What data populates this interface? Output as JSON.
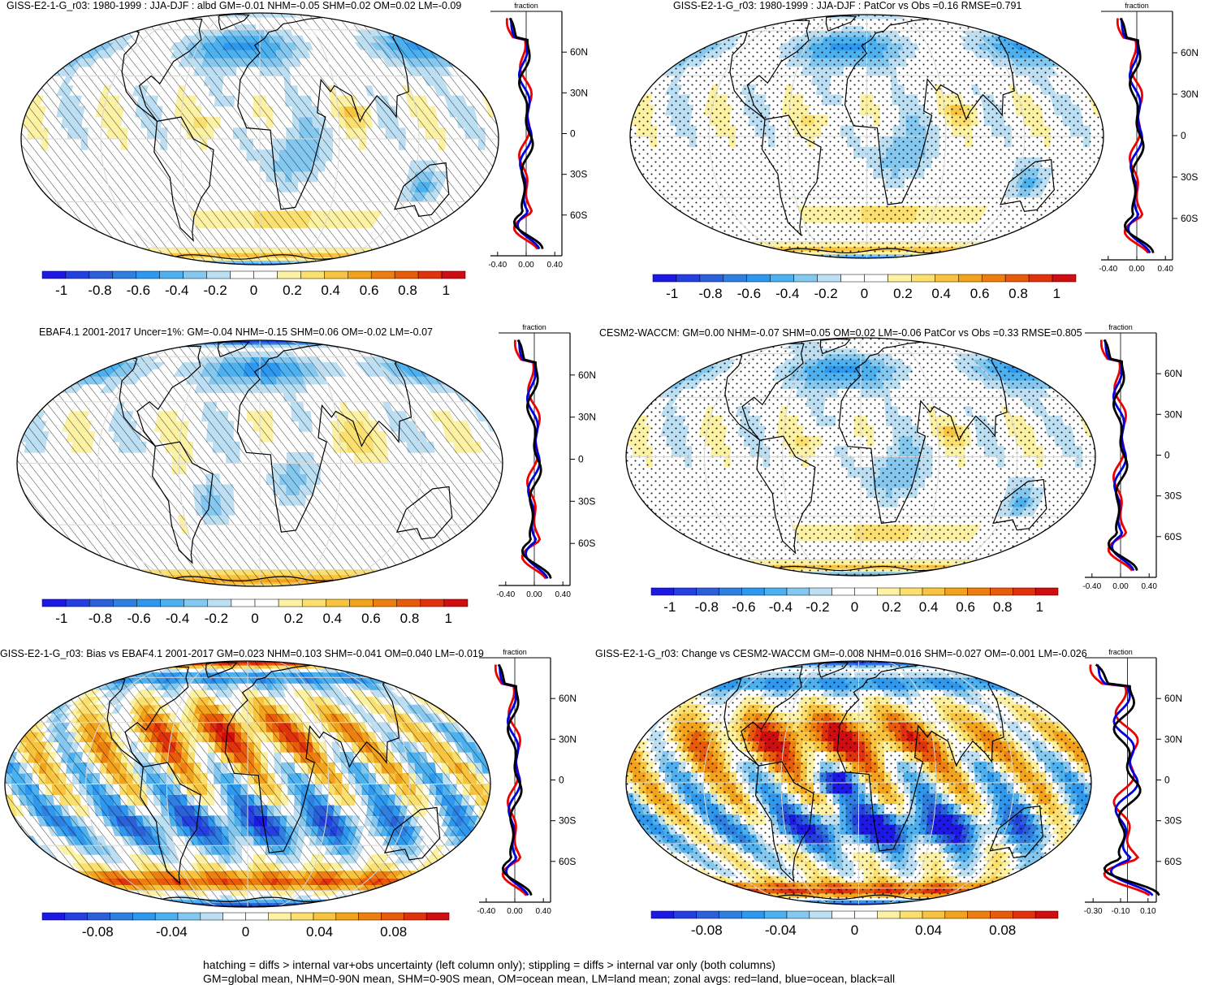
{
  "panels": [
    {
      "title": "GISS-E2-1-G_r03: 1980-1999 : JJA-DJF : albd GM=-0.01 NHM=-0.05 SHM=0.02 OM=0.02 LM=-0.09",
      "overlay": "hatch",
      "scheme": "A"
    },
    {
      "title": "GISS-E2-1-G_r03: 1980-1999 : JJA-DJF : PatCor vs Obs =0.16 RMSE=0.791",
      "overlay": "stipple",
      "scheme": "A"
    },
    {
      "title": "EBAF4.1 2001-2017 Uncer=1%: GM=-0.04 NHM=-0.15 SHM=0.06 OM=-0.02 LM=-0.07",
      "overlay": "hatch",
      "scheme": "B"
    },
    {
      "title": "CESM2-WACCM: GM=0.00 NHM=-0.07 SHM=0.05 OM=0.02 LM=-0.06 PatCor vs Obs =0.33 RMSE=0.805",
      "overlay": "stipple",
      "scheme": "C"
    },
    {
      "title": "GISS-E2-1-G_r03: Bias vs EBAF4.1 2001-2017 GM=0.023 NHM=0.103 SHM=-0.041 OM=0.040 LM=-0.019",
      "overlay": "hatch",
      "scheme": "D"
    },
    {
      "title": "GISS-E2-1-G_r03: Change vs CESM2-WACCM GM=-0.008 NHM=0.016 SHM=-0.027 OM=-0.001 LM=-0.026",
      "overlay": "stipple",
      "scheme": "E"
    }
  ],
  "chart_data": [
    {
      "type": "heatmap",
      "title": "GISS-E2-1-G_r03: 1980-1999 : JJA-DJF : albd GM=-0.01 NHM=-0.05 SHM=0.02 OM=0.02 LM=-0.09",
      "colorbar": {
        "ticks": [
          "-1",
          "-0.8",
          "-0.6",
          "-0.4",
          "-0.2",
          "0",
          "0.2",
          "0.4",
          "0.6",
          "0.8",
          "1"
        ],
        "range": [
          -1.1,
          1.1
        ]
      },
      "zonal_profile": {
        "xlabel": "fraction",
        "xticks": [
          "-0.40",
          "0.00",
          "0.40"
        ],
        "ylabels": [
          "60N",
          "30N",
          "0",
          "30S",
          "60S"
        ],
        "series": [
          {
            "name": "land",
            "color": "#ee0000"
          },
          {
            "name": "ocean",
            "color": "#0000dd"
          },
          {
            "name": "all",
            "color": "#000000"
          }
        ]
      }
    },
    {
      "type": "heatmap",
      "title": "GISS-E2-1-G_r03: 1980-1999 : JJA-DJF : PatCor vs Obs =0.16 RMSE=0.791",
      "colorbar": {
        "ticks": [
          "-1",
          "-0.8",
          "-0.6",
          "-0.4",
          "-0.2",
          "0",
          "0.2",
          "0.4",
          "0.6",
          "0.8",
          "1"
        ],
        "range": [
          -1.1,
          1.1
        ]
      },
      "zonal_profile": {
        "xlabel": "fraction",
        "xticks": [
          "-0.40",
          "0.00",
          "0.40"
        ],
        "ylabels": [
          "60N",
          "30N",
          "0",
          "30S",
          "60S"
        ],
        "series": [
          {
            "name": "land",
            "color": "#ee0000"
          },
          {
            "name": "ocean",
            "color": "#0000dd"
          },
          {
            "name": "all",
            "color": "#000000"
          }
        ]
      }
    },
    {
      "type": "heatmap",
      "title": "EBAF4.1 2001-2017 Uncer=1%: GM=-0.04 NHM=-0.15 SHM=0.06 OM=-0.02 LM=-0.07",
      "colorbar": {
        "ticks": [
          "-1",
          "-0.8",
          "-0.6",
          "-0.4",
          "-0.2",
          "0",
          "0.2",
          "0.4",
          "0.6",
          "0.8",
          "1"
        ],
        "range": [
          -1.1,
          1.1
        ]
      },
      "zonal_profile": {
        "xlabel": "fraction",
        "xticks": [
          "-0.40",
          "0.00",
          "0.40"
        ],
        "ylabels": [
          "60N",
          "30N",
          "0",
          "30S",
          "60S"
        ],
        "series": [
          {
            "name": "land",
            "color": "#ee0000"
          },
          {
            "name": "ocean",
            "color": "#0000dd"
          },
          {
            "name": "all",
            "color": "#000000"
          }
        ]
      }
    },
    {
      "type": "heatmap",
      "title": "CESM2-WACCM: GM=0.00 NHM=-0.07 SHM=0.05 OM=0.02 LM=-0.06 PatCor vs Obs =0.33 RMSE=0.805",
      "colorbar": {
        "ticks": [
          "-1",
          "-0.8",
          "-0.6",
          "-0.4",
          "-0.2",
          "0",
          "0.2",
          "0.4",
          "0.6",
          "0.8",
          "1"
        ],
        "range": [
          -1.1,
          1.1
        ]
      },
      "zonal_profile": {
        "xlabel": "fraction",
        "xticks": [
          "-0.40",
          "0.00",
          "0.40"
        ],
        "ylabels": [
          "60N",
          "30N",
          "0",
          "30S",
          "60S"
        ],
        "series": [
          {
            "name": "land",
            "color": "#ee0000"
          },
          {
            "name": "ocean",
            "color": "#0000dd"
          },
          {
            "name": "all",
            "color": "#000000"
          }
        ]
      }
    },
    {
      "type": "heatmap",
      "title": "GISS-E2-1-G_r03: Bias vs EBAF4.1 2001-2017 GM=0.023 NHM=0.103 SHM=-0.041 OM=0.040 LM=-0.019",
      "colorbar": {
        "ticks": [
          "-0.08",
          "-0.04",
          "0",
          "0.04",
          "0.08"
        ],
        "range": [
          -0.11,
          0.11
        ]
      },
      "zonal_profile": {
        "xlabel": "fraction",
        "xticks": [
          "-0.40",
          "0.00",
          "0.40"
        ],
        "ylabels": [
          "60N",
          "30N",
          "0",
          "30S",
          "60S"
        ],
        "series": [
          {
            "name": "land",
            "color": "#ee0000"
          },
          {
            "name": "ocean",
            "color": "#0000dd"
          },
          {
            "name": "all",
            "color": "#000000"
          }
        ]
      }
    },
    {
      "type": "heatmap",
      "title": "GISS-E2-1-G_r03: Change vs CESM2-WACCM GM=-0.008 NHM=0.016 SHM=-0.027 OM=-0.001 LM=-0.026",
      "colorbar": {
        "ticks": [
          "-0.08",
          "-0.04",
          "0",
          "0.04",
          "0.08"
        ],
        "range": [
          -0.11,
          0.11
        ]
      },
      "zonal_profile": {
        "xlabel": "fraction",
        "xticks": [
          "-0.30",
          "-0.10",
          "0.10"
        ],
        "ylabels": [
          "60N",
          "30N",
          "0",
          "30S",
          "60S"
        ],
        "series": [
          {
            "name": "land",
            "color": "#ee0000"
          },
          {
            "name": "ocean",
            "color": "#0000dd"
          },
          {
            "name": "all",
            "color": "#000000"
          }
        ]
      }
    }
  ],
  "colormap": [
    "#1d18e6",
    "#2440e0",
    "#2b60d8",
    "#2f7fe0",
    "#2e98ee",
    "#4db0ef",
    "#84c8ef",
    "#bcdff3",
    "#ffffff",
    "#ffffff",
    "#fdf2a4",
    "#fbe070",
    "#f8c440",
    "#f3a21c",
    "#ed7e10",
    "#e95a0a",
    "#e0320c",
    "#d00d10"
  ],
  "footer": {
    "line1": "hatching = diffs > internal var+obs uncertainty (left column only); stippling = diffs > internal var only (both columns)",
    "line2": "GM=global mean, NHM=0-90N mean, SHM=0-90S mean, OM=ocean mean, LM=land mean; zonal avgs: red=land, blue=ocean, black=all"
  }
}
